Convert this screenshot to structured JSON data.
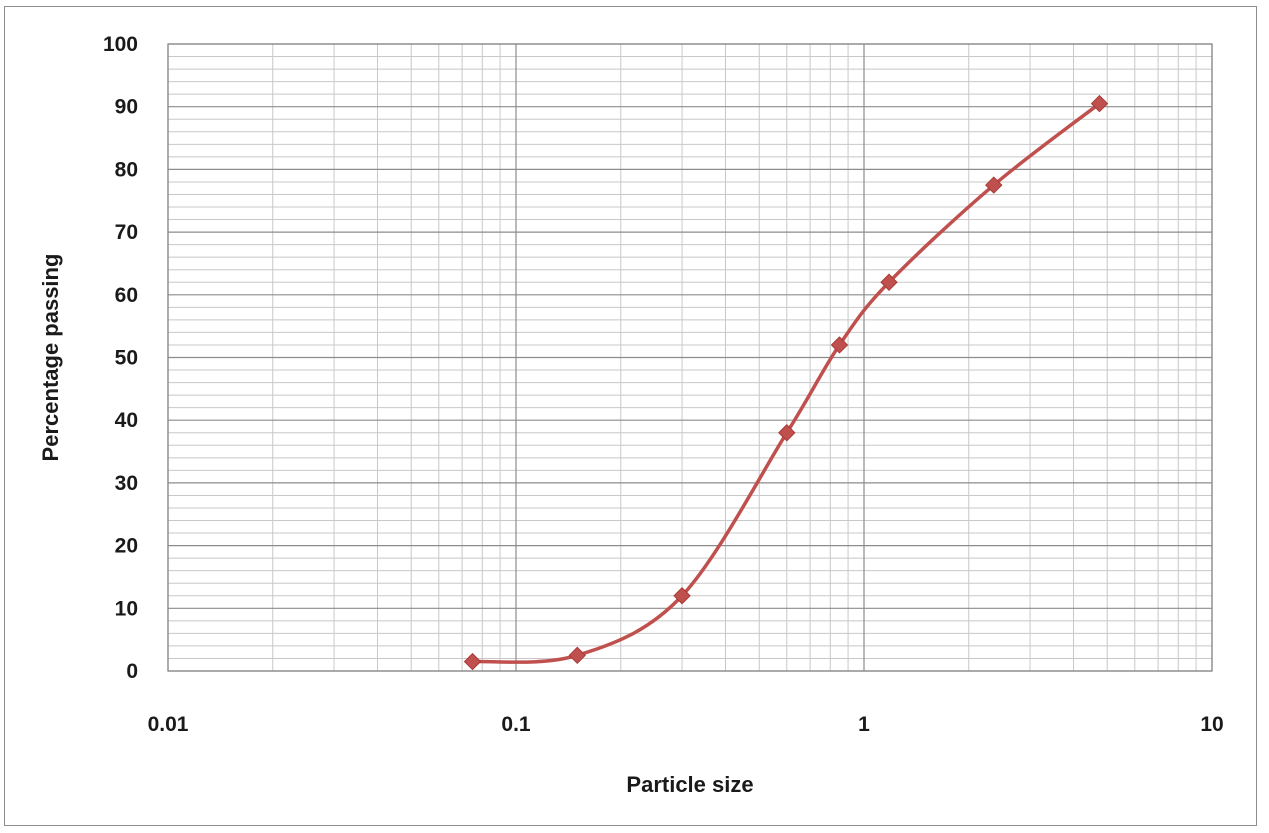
{
  "chart_data": {
    "type": "line",
    "title": "",
    "xlabel": "Particle size",
    "ylabel": "Percentage passing",
    "x_scale": "log",
    "xlim": [
      0.01,
      10
    ],
    "ylim": [
      0,
      100
    ],
    "x_ticks": [
      "0.01",
      "0.1",
      "1",
      "10"
    ],
    "y_ticks": [
      "0",
      "10",
      "20",
      "30",
      "40",
      "50",
      "60",
      "70",
      "80",
      "90",
      "100"
    ],
    "grid": true,
    "legend": "none",
    "series": [
      {
        "color": "#c0504d",
        "marker": "diamond",
        "smooth": true,
        "x": [
          0.075,
          0.15,
          0.3,
          0.6,
          0.85,
          1.18,
          2.36,
          4.75
        ],
        "y": [
          1.5,
          2.5,
          12,
          38,
          52,
          62,
          77.5,
          90.5
        ]
      }
    ]
  }
}
